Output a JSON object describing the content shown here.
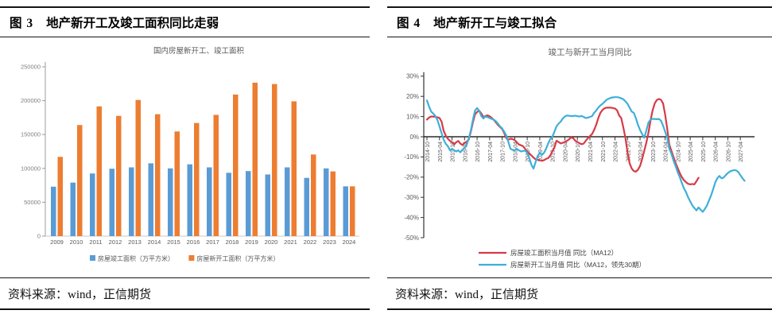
{
  "panels": {
    "left": {
      "figure_label": "图 3",
      "figure_title": "地产新开工及竣工面积同比走弱",
      "source": "资料来源：wind，正信期货"
    },
    "right": {
      "figure_label": "图 4",
      "figure_title": "地产新开工与竣工拟合",
      "source": "资料来源：wind，正信期货"
    }
  },
  "chart_data": [
    {
      "type": "bar",
      "title": "国内房屋新开工、竣工面积",
      "categories": [
        "2009",
        "2010",
        "2011",
        "2012",
        "2013",
        "2014",
        "2015",
        "2016",
        "2017",
        "2018",
        "2019",
        "2020",
        "2021",
        "2022",
        "2023",
        "2024"
      ],
      "series": [
        {
          "name": "房屋竣工面积（万平方米）",
          "color": "#5B9BD5",
          "values": [
            73000,
            79000,
            92500,
            99500,
            101500,
            107500,
            100000,
            106000,
            101500,
            93500,
            96000,
            91000,
            101500,
            86000,
            100000,
            73500
          ]
        },
        {
          "name": "房屋新开工面积（万平方米）",
          "color": "#ED7D31",
          "values": [
            117000,
            164000,
            191500,
            177500,
            201000,
            180000,
            154500,
            167000,
            179000,
            209000,
            226500,
            224500,
            199000,
            120500,
            95500,
            73500
          ]
        }
      ],
      "ylim": [
        0,
        250000
      ],
      "ytick_step": 50000,
      "grid": false,
      "legend_position": "bottom"
    },
    {
      "type": "line",
      "title": "竣工与新开工当月同比",
      "start_month": "2014-10",
      "x_tick_interval_months": 6,
      "x_domain_months": 155,
      "x_tick_labels": [
        "2014-10",
        "2015-04",
        "2015-10",
        "2016-04",
        "2016-10",
        "2017-04",
        "2017-10",
        "2018-04",
        "2018-10",
        "2019-04",
        "2019-10",
        "2020-04",
        "2020-10",
        "2021-04",
        "2021-10",
        "2022-04",
        "2022-10",
        "2023-04",
        "2023-10",
        "2024-04",
        "2024-10",
        "2025-04",
        "2025-10",
        "2026-04",
        "2026-10",
        "2027-04"
      ],
      "ylim": [
        -50,
        30
      ],
      "ytick_step": 10,
      "yunit": "%",
      "grid": false,
      "legend_position": "bottom",
      "series": [
        {
          "name": "房屋竣工面积当月值 同比（MA12）",
          "color": "#D63B47",
          "start_index": 0,
          "values": [
            8.5,
            9.5,
            10,
            10,
            9.8,
            9.6,
            9.3,
            7.5,
            3,
            0.5,
            -1,
            -2,
            -2.7,
            -3.8,
            -2.7,
            -2.1,
            -3.4,
            -4.1,
            -3,
            -2.5,
            -1.4,
            2.5,
            7.1,
            11,
            12.3,
            12.9,
            11.6,
            9.7,
            10.3,
            10.6,
            10.1,
            9.3,
            8.4,
            7.1,
            5.8,
            4.8,
            3.8,
            1.8,
            -0.8,
            -1.4,
            -1,
            -1.2,
            -1.7,
            -2.7,
            -3.8,
            -4.2,
            -4.7,
            -6,
            -7.3,
            -8.3,
            -9.3,
            -10.3,
            -11.2,
            -11.4,
            -11.6,
            -11.9,
            -11.6,
            -11,
            -10.6,
            -9.3,
            -7.3,
            -5.4,
            -2,
            -2.6,
            -3.3,
            -3,
            -2.6,
            -2,
            -1.3,
            -0.3,
            -0.7,
            -2,
            -2.6,
            -3.2,
            -3.7,
            -3.4,
            -2,
            -0.7,
            0.3,
            1.3,
            3.3,
            5.9,
            9.2,
            11.8,
            13.3,
            14.1,
            14.4,
            14.4,
            14.4,
            14.2,
            14,
            13.1,
            10.5,
            9.2,
            4.6,
            -0.7,
            -7.8,
            -13.1,
            -15.7,
            -17,
            -17.3,
            -16.3,
            -14.4,
            -11,
            -7,
            -3,
            2,
            8,
            13,
            16.5,
            18.2,
            18.7,
            18.3,
            16.5,
            11,
            4,
            -3.9,
            -7,
            -10,
            -13,
            -15.5,
            -18,
            -20,
            -21.5,
            -22.5,
            -23.3,
            -23.6,
            -23.4,
            -23.6,
            -22,
            -20.3
          ]
        },
        {
          "name": "房屋新开工当月值 同比（MA12，领先30期）",
          "color": "#3FAFD8",
          "start_index": 0,
          "values": [
            18,
            15,
            12.5,
            11.5,
            10.3,
            8.4,
            5.1,
            1.8,
            -1.4,
            -3.5,
            -4.7,
            -6.7,
            -6,
            -6.7,
            -7.3,
            -6.7,
            -7.7,
            -6.4,
            -5.5,
            -4.1,
            -0.8,
            3.1,
            8.4,
            12.9,
            14.2,
            12.9,
            10.3,
            9,
            10.1,
            9.7,
            9.3,
            8.8,
            8.4,
            7.7,
            6.4,
            5.1,
            4.1,
            2.5,
            0.5,
            -2.7,
            -6,
            -6.5,
            -6.7,
            -6,
            -6.7,
            -7.3,
            -7,
            -6.9,
            -8,
            -10.6,
            -13.9,
            -15.8,
            -12.5,
            -9.5,
            -8,
            -9,
            -8,
            -6,
            -3.4,
            -1.2,
            -0.1,
            2.5,
            5.1,
            6.5,
            7.5,
            9,
            10,
            10.5,
            10.4,
            10.2,
            10.3,
            10.4,
            10.2,
            10,
            10.3,
            9.8,
            9.2,
            9.5,
            9.8,
            10.2,
            11.8,
            13,
            14.4,
            15.5,
            16.3,
            17.3,
            18.3,
            18.8,
            19.3,
            19.5,
            19.6,
            19.6,
            19.4,
            19,
            18.6,
            17.5,
            16.3,
            14.4,
            12.5,
            11.8,
            9.2,
            5.9,
            3.3,
            1.3,
            -0.5,
            3,
            7,
            8.5,
            8.8,
            8.8,
            8.7,
            8.8,
            8,
            5.5,
            2.5,
            -0.5,
            -5.9,
            -8.5,
            -11.8,
            -14.5,
            -17.6,
            -20,
            -22.9,
            -25.5,
            -27.5,
            -30,
            -32,
            -34,
            -35.3,
            -36.5,
            -35,
            -36.2,
            -37.2,
            -35.8,
            -34,
            -31.5,
            -29,
            -26,
            -22.5,
            -20.5,
            -19.4,
            -20.6,
            -20.2,
            -19,
            -18,
            -17.2,
            -16.8,
            -16.5,
            -16.7,
            -17.5,
            -19,
            -20.5,
            -21.8
          ]
        }
      ]
    }
  ]
}
